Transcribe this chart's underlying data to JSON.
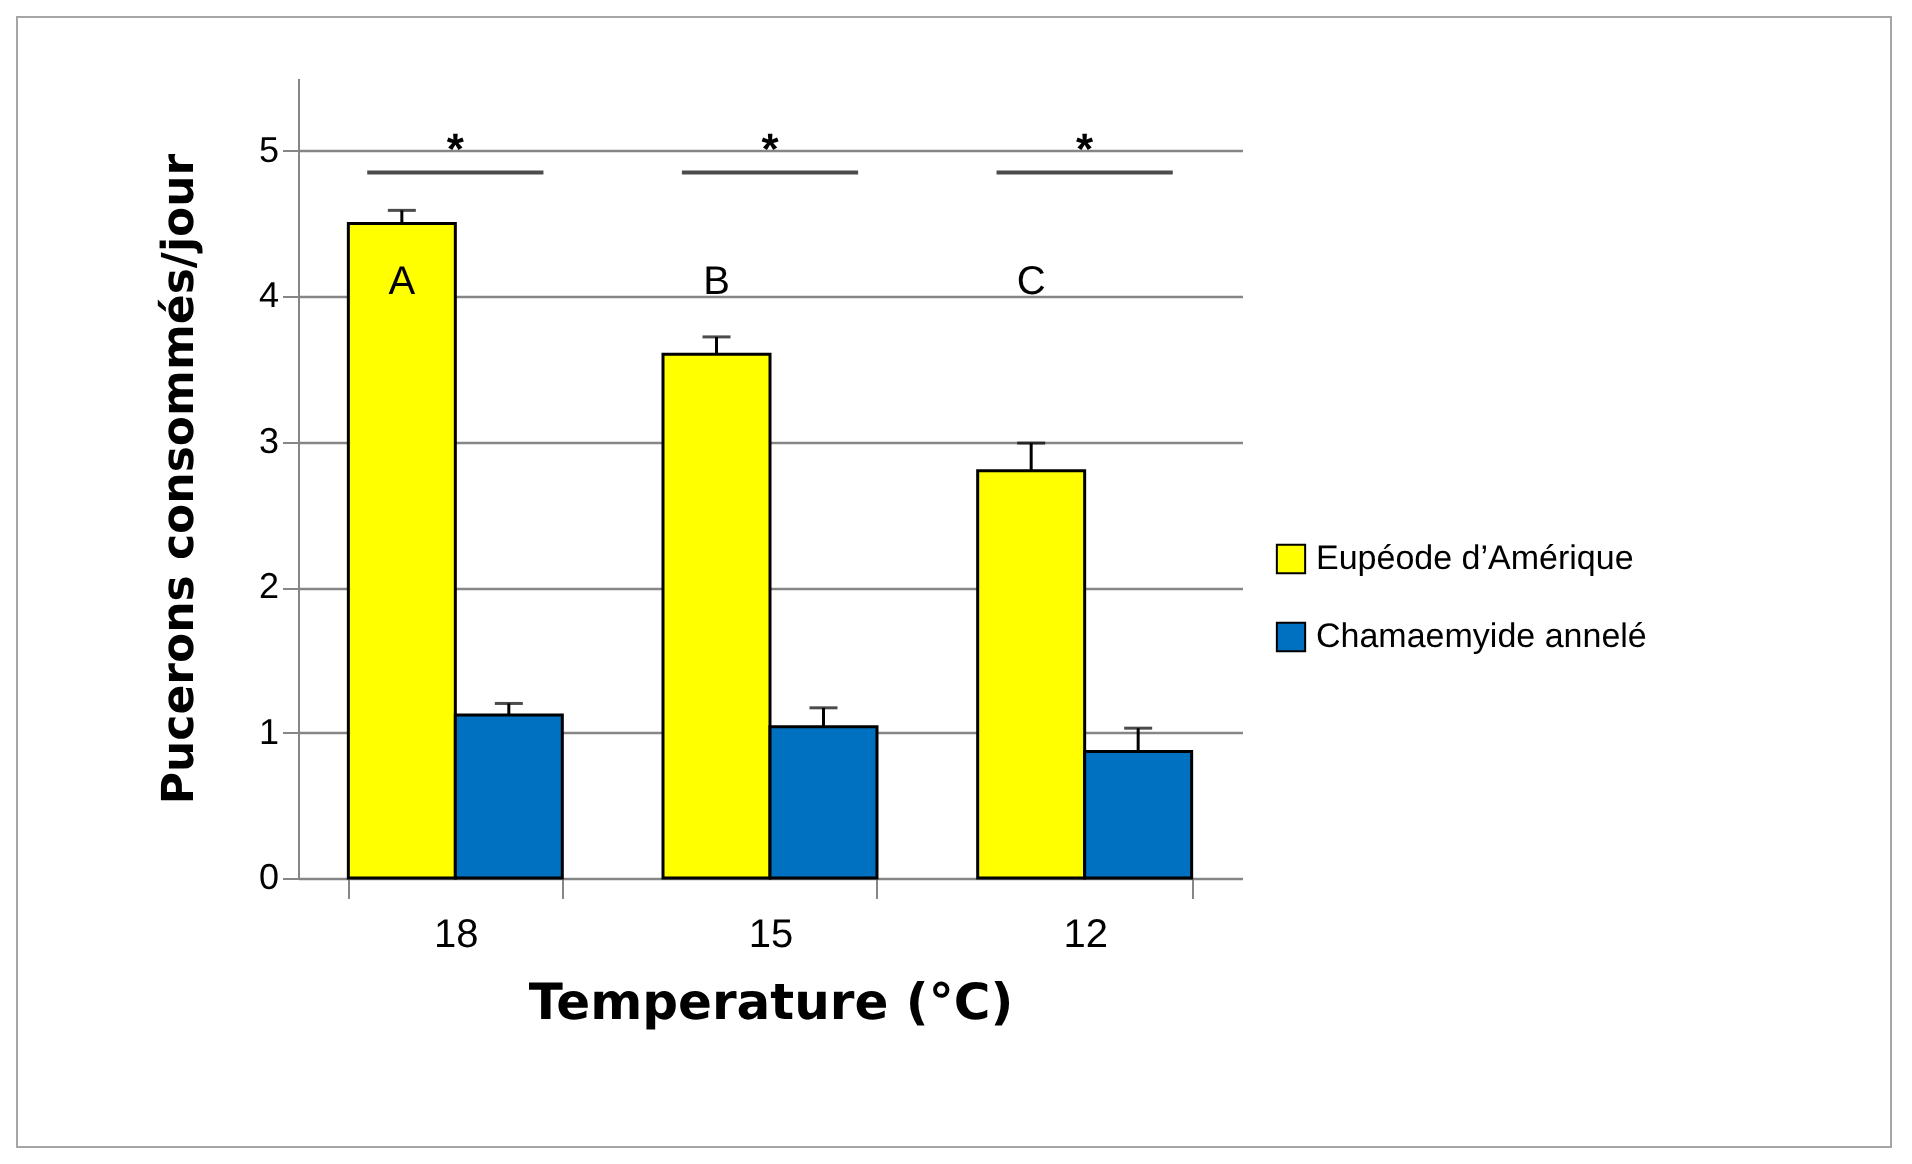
{
  "chart_data": {
    "type": "bar",
    "xlabel": "Temperature (°C)",
    "ylabel": "Pucerons consommés/jour",
    "categories": [
      "18",
      "15",
      "12"
    ],
    "series": [
      {
        "name": "Eupéode d’Amérique",
        "color": "#ffff00",
        "values": [
          4.5,
          3.6,
          2.8
        ],
        "errors": [
          [
            4.5,
            4.59
          ],
          [
            3.6,
            3.72
          ],
          [
            2.8,
            2.99
          ]
        ]
      },
      {
        "name": "Chamaemyide annelé",
        "color": "#0070c0",
        "values": [
          1.12,
          1.04,
          0.87
        ],
        "errors": [
          [
            1.12,
            1.2
          ],
          [
            1.04,
            1.17
          ],
          [
            0.87,
            1.03
          ]
        ]
      }
    ],
    "ylim": [
      0,
      5.5
    ],
    "yticks": [
      0,
      1,
      2,
      3,
      4,
      5
    ],
    "grid": "y",
    "legend": "right",
    "annotations": [
      "*",
      "*",
      "*",
      "A",
      "B",
      "C"
    ]
  }
}
